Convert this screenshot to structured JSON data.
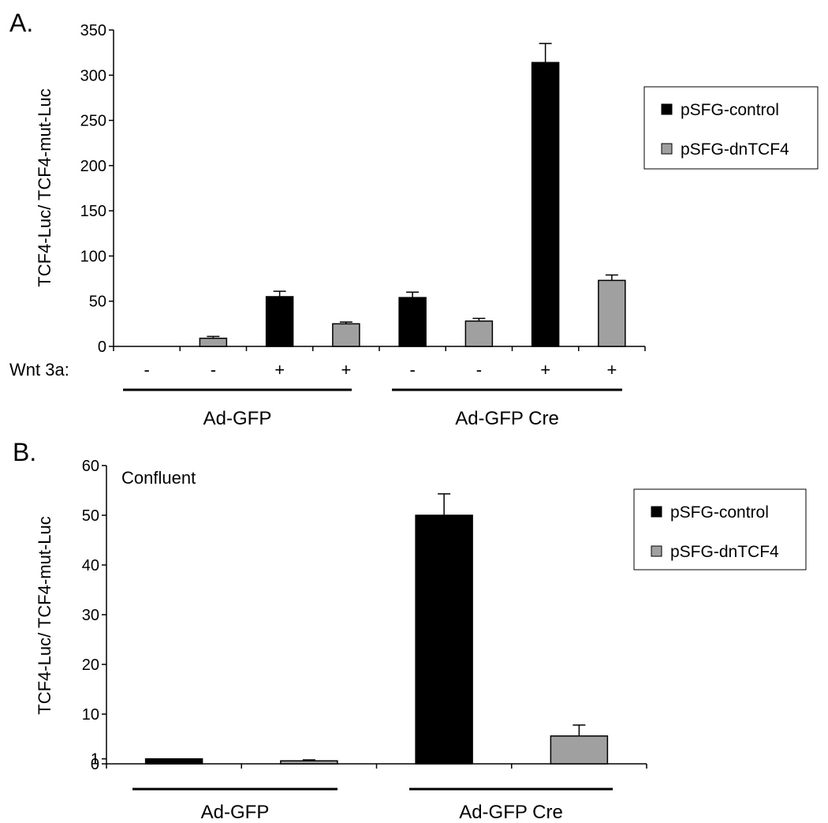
{
  "chart_data": [
    {
      "panel_label": "A.",
      "type": "bar",
      "ylabel": "TCF4-Luc/ TCF4-mut-Luc",
      "ylim": [
        0,
        350
      ],
      "yticks": [
        0,
        50,
        100,
        150,
        200,
        250,
        300,
        350
      ],
      "wnt_label": "Wnt 3a:",
      "wnt_treatment": [
        "-",
        "-",
        "+",
        "+",
        "-",
        "-",
        "+",
        "+"
      ],
      "bars": [
        {
          "series": "pSFG-control",
          "value": 0,
          "error": 0
        },
        {
          "series": "pSFG-dnTCF4",
          "value": 9,
          "error": 2
        },
        {
          "series": "pSFG-control",
          "value": 55,
          "error": 6
        },
        {
          "series": "pSFG-dnTCF4",
          "value": 25,
          "error": 2
        },
        {
          "series": "pSFG-control",
          "value": 54,
          "error": 6
        },
        {
          "series": "pSFG-dnTCF4",
          "value": 28,
          "error": 3
        },
        {
          "series": "pSFG-control",
          "value": 314,
          "error": 21
        },
        {
          "series": "pSFG-dnTCF4",
          "value": 73,
          "error": 6
        }
      ],
      "groups": [
        "Ad-GFP",
        "Ad-GFP Cre"
      ],
      "legend": [
        {
          "name": "pSFG-control",
          "color": "#000000"
        },
        {
          "name": "pSFG-dnTCF4",
          "color": "#a0a0a0"
        }
      ],
      "legend_position": "top-right",
      "grid": false
    },
    {
      "panel_label": "B.",
      "type": "bar",
      "ylabel": "TCF4-Luc/ TCF4-mut-Luc",
      "annotation": "Confluent",
      "ylim": [
        0,
        60
      ],
      "yticks": [
        0,
        1,
        10,
        20,
        30,
        40,
        50,
        60
      ],
      "bars": [
        {
          "series": "pSFG-control",
          "value": 1,
          "error": 0
        },
        {
          "series": "pSFG-dnTCF4",
          "value": 0.6,
          "error": 0.2
        },
        {
          "series": "pSFG-control",
          "value": 50,
          "error": 4.3
        },
        {
          "series": "pSFG-dnTCF4",
          "value": 5.6,
          "error": 2.2
        }
      ],
      "groups": [
        "Ad-GFP",
        "Ad-GFP Cre"
      ],
      "legend": [
        {
          "name": "pSFG-control",
          "color": "#000000"
        },
        {
          "name": "pSFG-dnTCF4",
          "color": "#a0a0a0"
        }
      ],
      "legend_position": "top-right",
      "grid": false
    }
  ]
}
